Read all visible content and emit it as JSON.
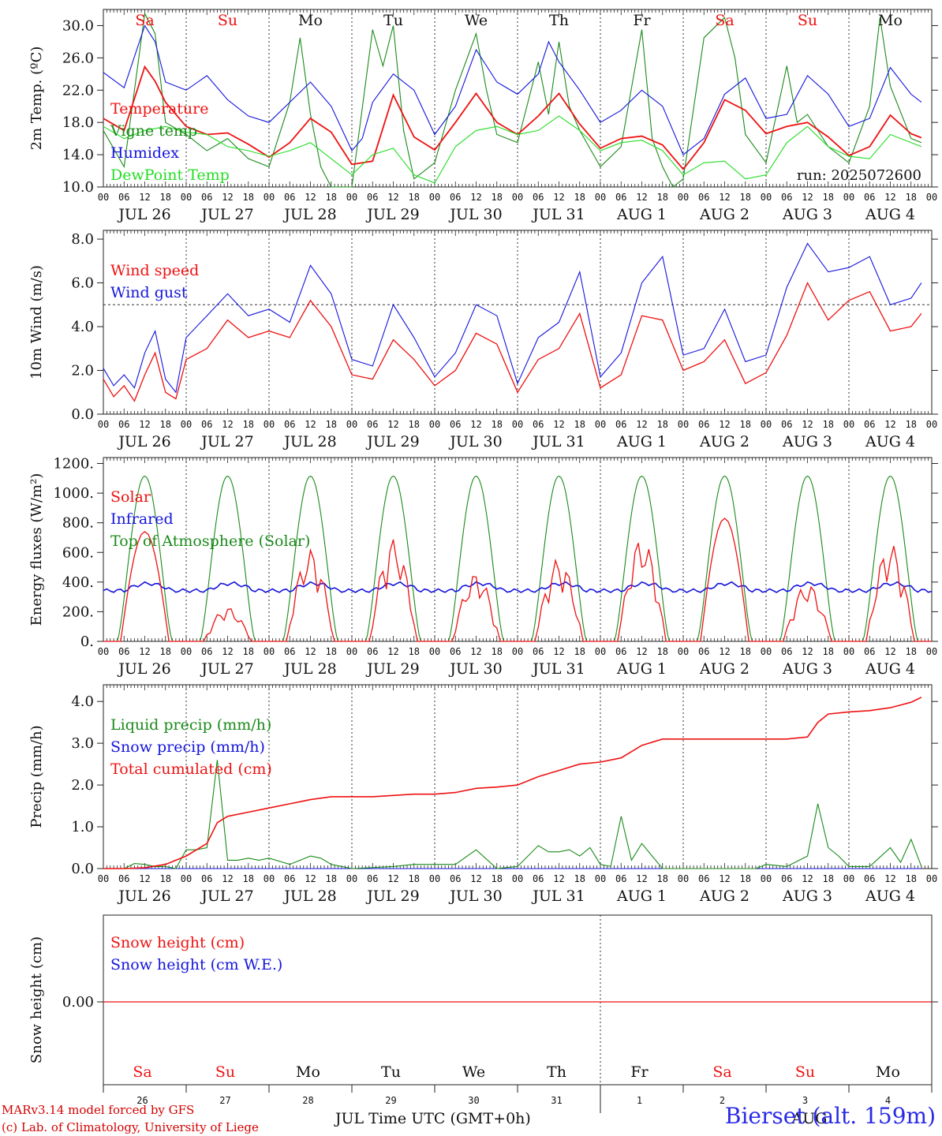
{
  "run_label": "run: 2025072600",
  "colors": {
    "red": "#ee1111",
    "green": "#1a8a1a",
    "blue": "#1414dd",
    "lightgreen": "#22dd22",
    "axis": "#222222"
  },
  "day_names": [
    "Sa",
    "Su",
    "Mo",
    "Tu",
    "We",
    "Th",
    "Fr",
    "Sa",
    "Su",
    "Mo"
  ],
  "day_name_colors": [
    "#ee1111",
    "#ee1111",
    "#111111",
    "#111111",
    "#111111",
    "#111111",
    "#111111",
    "#ee1111",
    "#ee1111",
    "#111111"
  ],
  "date_labels": [
    "JUL 26",
    "JUL 27",
    "JUL 28",
    "JUL 29",
    "JUL 30",
    "JUL 31",
    "AUG  1",
    "AUG  2",
    "AUG  3",
    "AUG  4"
  ],
  "hour_labels": [
    "00",
    "06",
    "12",
    "18"
  ],
  "bottom_day_numbers": [
    "26",
    "27",
    "28",
    "29",
    "30",
    "31",
    "1",
    "2",
    "3",
    "4"
  ],
  "bottom_month_left": "JUL",
  "bottom_month_right": "AUG",
  "xaxis_title": "Time UTC (GMT+0h)",
  "footer": {
    "model": "MARv3.14 model forced by GFS",
    "credit": "(c) Lab. of Climatology, University of Liege"
  },
  "site": "Bierset (alt. 159m)",
  "chart_data": [
    {
      "type": "line",
      "ylabel": "2m Temp. (ºC)",
      "ylim": [
        10,
        32
      ],
      "yticks": [
        "10.0",
        "14.0",
        "18.0",
        "22.0",
        "26.0",
        "30.0"
      ],
      "x_unit": "hours since JUL 26 00 UTC",
      "series": [
        {
          "name": "Temperature",
          "color": "#ee1111",
          "x": [
            0,
            6,
            12,
            15,
            18,
            24,
            30,
            36,
            42,
            48,
            54,
            60,
            66,
            72,
            78,
            84,
            90,
            96,
            102,
            108,
            114,
            120,
            126,
            132,
            138,
            144,
            150,
            156,
            162,
            168,
            174,
            180,
            186,
            192,
            198,
            204,
            210,
            216,
            222,
            228,
            234,
            237
          ],
          "y": [
            18.5,
            17.0,
            24.9,
            23.1,
            20.5,
            17.5,
            16.5,
            16.7,
            15.3,
            13.7,
            15.5,
            18.5,
            16.8,
            12.8,
            13.2,
            21.4,
            16.2,
            14.6,
            18.0,
            21.6,
            18.0,
            16.5,
            18.8,
            21.6,
            17.8,
            14.8,
            16.0,
            16.3,
            15.2,
            12.2,
            15.5,
            20.8,
            19.5,
            16.6,
            17.5,
            18.0,
            16.2,
            13.9,
            15.0,
            18.9,
            16.6,
            16.1
          ]
        },
        {
          "name": "Vigne temp",
          "color": "#1a8a1a",
          "x": [
            0,
            6,
            9,
            12,
            15,
            18,
            24,
            30,
            36,
            42,
            48,
            54,
            57,
            60,
            63,
            66,
            72,
            78,
            81,
            84,
            87,
            90,
            96,
            102,
            108,
            111,
            114,
            120,
            126,
            129,
            132,
            135,
            138,
            144,
            150,
            156,
            159,
            162,
            165,
            168,
            174,
            180,
            183,
            186,
            192,
            198,
            201,
            204,
            210,
            216,
            222,
            225,
            228,
            234,
            237
          ],
          "y": [
            17.0,
            12.5,
            22.0,
            31.5,
            29.0,
            18.0,
            16.5,
            14.5,
            16.0,
            13.5,
            12.5,
            20.5,
            28.5,
            19.0,
            12.5,
            10.0,
            10.0,
            29.5,
            25.0,
            30.0,
            17.0,
            11.0,
            13.0,
            22.0,
            29.0,
            22.0,
            16.5,
            15.5,
            25.5,
            19.0,
            28.0,
            20.0,
            17.0,
            12.5,
            15.0,
            29.5,
            16.0,
            12.5,
            10.0,
            11.0,
            28.5,
            31.0,
            26.0,
            16.5,
            13.0,
            25.0,
            18.0,
            19.0,
            15.0,
            13.0,
            20.0,
            31.0,
            22.5,
            16.0,
            15.5
          ]
        },
        {
          "name": "Humidex",
          "color": "#1414dd",
          "x": [
            0,
            6,
            12,
            15,
            18,
            24,
            30,
            36,
            42,
            48,
            54,
            60,
            66,
            72,
            75,
            78,
            84,
            90,
            96,
            102,
            108,
            114,
            120,
            126,
            129,
            132,
            138,
            144,
            150,
            156,
            162,
            168,
            174,
            180,
            186,
            192,
            198,
            204,
            210,
            216,
            222,
            228,
            234,
            237
          ],
          "y": [
            24.2,
            22.3,
            30.0,
            28.0,
            23.0,
            22.0,
            23.8,
            20.8,
            18.8,
            18.0,
            20.5,
            23.0,
            20.0,
            14.5,
            16.0,
            20.5,
            24.0,
            22.0,
            16.5,
            20.0,
            27.0,
            23.0,
            21.5,
            24.0,
            28.0,
            25.5,
            22.0,
            18.0,
            19.5,
            22.0,
            20.0,
            14.0,
            16.0,
            21.5,
            23.5,
            18.5,
            19.0,
            23.8,
            21.5,
            17.5,
            18.5,
            24.8,
            21.5,
            20.5
          ]
        },
        {
          "name": "DewPoint Temp",
          "color": "#22dd22",
          "x": [
            0,
            6,
            12,
            18,
            24,
            30,
            36,
            42,
            48,
            54,
            60,
            66,
            72,
            78,
            84,
            90,
            96,
            102,
            108,
            114,
            120,
            126,
            132,
            138,
            144,
            150,
            156,
            162,
            168,
            174,
            180,
            186,
            192,
            198,
            204,
            210,
            216,
            222,
            228,
            234,
            237
          ],
          "y": [
            17.5,
            16.0,
            17.0,
            17.5,
            16.8,
            16.5,
            15.0,
            14.5,
            13.8,
            14.5,
            15.5,
            13.5,
            11.5,
            14.0,
            14.8,
            11.5,
            10.5,
            15.0,
            17.0,
            17.5,
            16.5,
            17.0,
            18.8,
            17.0,
            14.5,
            15.5,
            15.8,
            14.5,
            11.5,
            13.0,
            13.2,
            11.0,
            11.5,
            15.5,
            17.5,
            15.0,
            13.8,
            13.5,
            16.5,
            15.5,
            15.0
          ]
        }
      ],
      "legend_location": "left"
    },
    {
      "type": "line",
      "ylabel": "10m Wind (m/s)",
      "ylim": [
        0,
        8.4
      ],
      "yticks": [
        "0.0",
        "2.0",
        "4.0",
        "6.0",
        "8.0"
      ],
      "reference_line": 5.0,
      "series": [
        {
          "name": "Wind speed",
          "color": "#ee1111",
          "x": [
            0,
            3,
            6,
            9,
            12,
            15,
            18,
            21,
            24,
            30,
            36,
            42,
            48,
            54,
            60,
            66,
            72,
            78,
            84,
            90,
            96,
            102,
            108,
            114,
            120,
            126,
            132,
            138,
            144,
            150,
            156,
            162,
            168,
            174,
            180,
            186,
            192,
            198,
            204,
            210,
            216,
            222,
            228,
            234,
            237
          ],
          "y": [
            1.6,
            0.8,
            1.3,
            0.6,
            1.8,
            2.8,
            1.0,
            0.7,
            2.5,
            3.0,
            4.3,
            3.5,
            3.8,
            3.5,
            5.2,
            4.0,
            1.8,
            1.6,
            3.4,
            2.5,
            1.3,
            2.0,
            3.7,
            3.2,
            1.0,
            2.5,
            3.0,
            4.6,
            1.2,
            1.8,
            4.5,
            4.3,
            2.0,
            2.4,
            3.4,
            1.4,
            1.9,
            3.6,
            6.0,
            4.3,
            5.2,
            5.6,
            3.8,
            4.0,
            4.6
          ]
        },
        {
          "name": "Wind gust",
          "color": "#1414dd",
          "x": [
            0,
            3,
            6,
            9,
            12,
            15,
            18,
            21,
            24,
            30,
            36,
            42,
            48,
            54,
            60,
            66,
            72,
            78,
            84,
            90,
            96,
            102,
            108,
            114,
            120,
            126,
            132,
            138,
            144,
            150,
            156,
            162,
            168,
            174,
            180,
            186,
            192,
            198,
            204,
            210,
            216,
            222,
            228,
            234,
            237
          ],
          "y": [
            2.1,
            1.3,
            1.8,
            1.2,
            2.8,
            3.8,
            1.6,
            1.0,
            3.5,
            4.5,
            5.5,
            4.5,
            4.8,
            4.2,
            6.8,
            5.5,
            2.5,
            2.2,
            5.0,
            3.5,
            1.7,
            2.8,
            5.0,
            4.5,
            1.4,
            3.5,
            4.2,
            6.5,
            1.7,
            2.8,
            6.0,
            7.2,
            2.7,
            3.0,
            4.8,
            2.4,
            2.7,
            5.8,
            7.8,
            6.5,
            6.7,
            7.2,
            5.0,
            5.3,
            6.0
          ]
        }
      ],
      "legend_location": "left"
    },
    {
      "type": "line",
      "ylabel": "Energy fluxes (W/m²)",
      "ylim": [
        0,
        1240
      ],
      "yticks": [
        "0.",
        "200.",
        "400.",
        "600.",
        "800.",
        "1000.",
        "1200."
      ],
      "series": [
        {
          "name": "Solar",
          "color": "#ee1111",
          "peaks": [
            740,
            230,
            620,
            690,
            460,
            560,
            700,
            830,
            390,
            660
          ]
        },
        {
          "name": "Infrared",
          "color": "#1414dd",
          "night": 310,
          "day": 390
        },
        {
          "name": "Top of Atmosphere (Solar)",
          "color": "#1a8a1a",
          "peak": 1115
        }
      ],
      "legend_location": "left"
    },
    {
      "type": "line",
      "ylabel": "Precip (mm/h)",
      "ylim": [
        0,
        4.4
      ],
      "yticks": [
        "0.0",
        "1.0",
        "2.0",
        "3.0",
        "4.0"
      ],
      "series": [
        {
          "name": "Liquid precip (mm/h)",
          "color": "#1a8a1a",
          "x": [
            0,
            6,
            9,
            12,
            15,
            18,
            21,
            24,
            27,
            30,
            33,
            36,
            39,
            42,
            45,
            48,
            54,
            60,
            63,
            66,
            72,
            84,
            90,
            102,
            108,
            114,
            120,
            126,
            129,
            132,
            135,
            138,
            141,
            144,
            147,
            150,
            153,
            156,
            159,
            162,
            168,
            174,
            180,
            183,
            186,
            189,
            192,
            198,
            204,
            207,
            210,
            213,
            216,
            222,
            228,
            231,
            234,
            237
          ],
          "y": [
            0,
            0,
            0.12,
            0.1,
            0.05,
            0.05,
            0.0,
            0.45,
            0.45,
            0.5,
            2.6,
            0.2,
            0.2,
            0.25,
            0.2,
            0.25,
            0.1,
            0.3,
            0.25,
            0.1,
            0.0,
            0.05,
            0.1,
            0.1,
            0.45,
            0.0,
            0.05,
            0.55,
            0.4,
            0.4,
            0.45,
            0.3,
            0.5,
            0.1,
            0.05,
            1.25,
            0.2,
            0.6,
            0.3,
            0.0,
            0.0,
            0.0,
            0.0,
            0.0,
            0.0,
            0.0,
            0.1,
            0.05,
            0.3,
            1.55,
            0.5,
            0.3,
            0.05,
            0.05,
            0.5,
            0.15,
            0.7,
            0.05
          ]
        },
        {
          "name": "Snow precip (mm/h)",
          "color": "#1414dd",
          "x": [
            0,
            237
          ],
          "y": [
            0,
            0
          ]
        },
        {
          "name": "Total cumulated (cm)",
          "color": "#ee1111",
          "x": [
            0,
            6,
            12,
            18,
            24,
            30,
            33,
            36,
            42,
            48,
            54,
            60,
            66,
            72,
            78,
            84,
            90,
            96,
            102,
            108,
            114,
            120,
            126,
            132,
            138,
            144,
            150,
            156,
            162,
            168,
            174,
            180,
            186,
            192,
            198,
            204,
            207,
            210,
            216,
            222,
            228,
            234,
            237
          ],
          "y": [
            0,
            0,
            0.02,
            0.1,
            0.3,
            0.6,
            1.1,
            1.25,
            1.35,
            1.45,
            1.55,
            1.65,
            1.72,
            1.72,
            1.72,
            1.75,
            1.78,
            1.78,
            1.82,
            1.92,
            1.95,
            2.0,
            2.2,
            2.35,
            2.5,
            2.55,
            2.65,
            2.95,
            3.1,
            3.1,
            3.1,
            3.1,
            3.1,
            3.1,
            3.1,
            3.15,
            3.5,
            3.7,
            3.75,
            3.78,
            3.85,
            3.98,
            4.1
          ]
        }
      ],
      "legend_location": "left"
    },
    {
      "type": "line",
      "ylabel": "Snow height (cm)",
      "yticks": [
        "0.00"
      ],
      "series": [
        {
          "name": "Snow height (cm)",
          "color": "#ee1111",
          "x": [
            0,
            237
          ],
          "y": [
            0,
            0
          ]
        },
        {
          "name": "Snow height (cm W.E.)",
          "color": "#1414dd",
          "x": [
            0,
            237
          ],
          "y": [
            0,
            0
          ]
        }
      ],
      "legend_location": "left"
    }
  ]
}
